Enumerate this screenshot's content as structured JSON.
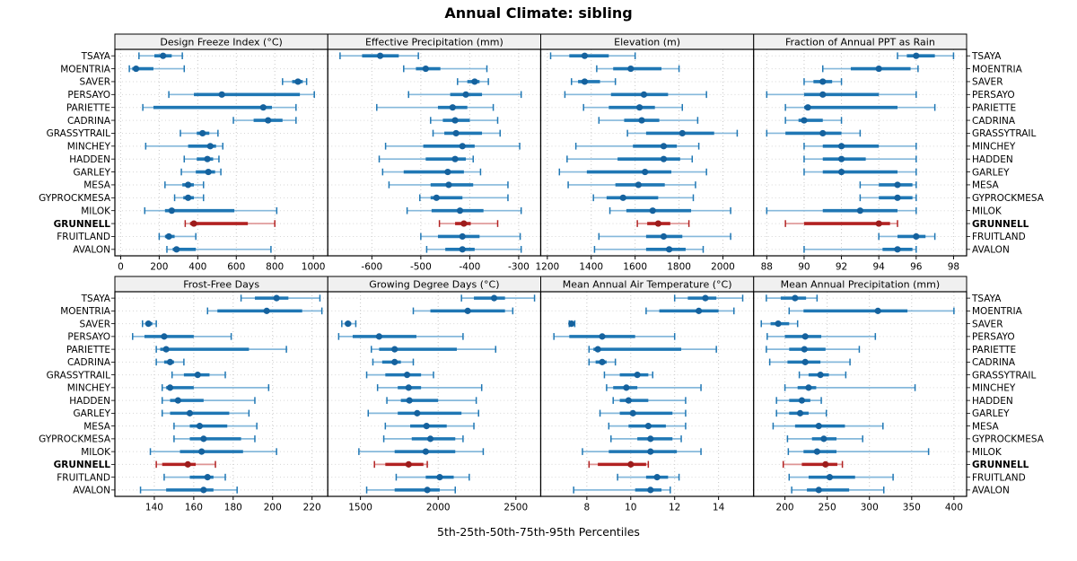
{
  "title": "Annual Climate: sibling",
  "caption": "5th-25th-50th-75th-95th Percentiles",
  "percentile_labels": [
    "5th",
    "25th",
    "50th",
    "75th",
    "95th"
  ],
  "sites": [
    "TSAYA",
    "MOENTRIA",
    "SAVER",
    "PERSAYO",
    "PARIETTE",
    "CADRINA",
    "GRASSYTRAIL",
    "MINCHEY",
    "HADDEN",
    "GARLEY",
    "MESA",
    "GYPROCKMESA",
    "MILOK",
    "GRUNNELL",
    "FRUITLAND",
    "AVALON"
  ],
  "highlight_site": "GRUNNELL",
  "colors": {
    "series": "#1f77b4",
    "series_light": "#85b8db",
    "series_dot": "#15629e",
    "highlight": "#b22222",
    "highlight_light": "#de9494",
    "highlight_dot": "#9c1c1c",
    "strip_bg": "#f0f0f0",
    "grid": "#c8c8c8",
    "row_grid": "#d6d6d6",
    "border": "#000000"
  },
  "chart_data": [
    {
      "type": "dotplot-percentiles",
      "title": "Design Freeze Index (°C)",
      "ticks": [
        0,
        200,
        400,
        600,
        800,
        1000
      ],
      "tick_labels": [
        "0",
        "200",
        "400",
        "600",
        "800",
        "1000"
      ],
      "domain": [
        -30,
        1075
      ],
      "values": [
        [
          95,
          175,
          220,
          265,
          320
        ],
        [
          45,
          60,
          80,
          170,
          330
        ],
        [
          840,
          890,
          920,
          945,
          965
        ],
        [
          250,
          380,
          525,
          930,
          1005
        ],
        [
          115,
          170,
          740,
          785,
          910
        ],
        [
          585,
          690,
          765,
          840,
          910
        ],
        [
          310,
          395,
          425,
          460,
          505
        ],
        [
          130,
          350,
          465,
          495,
          530
        ],
        [
          330,
          395,
          450,
          480,
          510
        ],
        [
          315,
          390,
          455,
          490,
          520
        ],
        [
          230,
          320,
          350,
          380,
          430
        ],
        [
          280,
          325,
          350,
          380,
          430
        ],
        [
          125,
          230,
          265,
          590,
          810
        ],
        [
          335,
          360,
          380,
          660,
          800
        ],
        [
          200,
          230,
          250,
          280,
          390
        ],
        [
          240,
          270,
          290,
          390,
          780
        ]
      ]
    },
    {
      "type": "dotplot-percentiles",
      "title": "Effective Precipitation (mm)",
      "ticks": [
        -600,
        -500,
        -400,
        -300
      ],
      "tick_labels": [
        "-600",
        "-500",
        "-400",
        "-300"
      ],
      "domain": [
        -690,
        -255
      ],
      "values": [
        [
          -665,
          -620,
          -583,
          -545,
          -505
        ],
        [
          -535,
          -510,
          -490,
          -460,
          -365
        ],
        [
          -425,
          -405,
          -390,
          -380,
          -362
        ],
        [
          -525,
          -440,
          -408,
          -375,
          -295
        ],
        [
          -590,
          -465,
          -435,
          -405,
          -352
        ],
        [
          -480,
          -455,
          -430,
          -400,
          -343
        ],
        [
          -475,
          -452,
          -428,
          -375,
          -338
        ],
        [
          -572,
          -495,
          -415,
          -390,
          -298
        ],
        [
          -585,
          -490,
          -430,
          -408,
          -393
        ],
        [
          -578,
          -535,
          -445,
          -412,
          -378
        ],
        [
          -565,
          -480,
          -443,
          -393,
          -322
        ],
        [
          -502,
          -480,
          -468,
          -415,
          -322
        ],
        [
          -528,
          -478,
          -420,
          -372,
          -295
        ],
        [
          -462,
          -430,
          -412,
          -398,
          -343
        ],
        [
          -500,
          -465,
          -415,
          -380,
          -297
        ],
        [
          -488,
          -450,
          -415,
          -390,
          -295
        ]
      ]
    },
    {
      "type": "dotplot-percentiles",
      "title": "Elevation (m)",
      "ticks": [
        1200,
        1400,
        1600,
        1800,
        2000
      ],
      "tick_labels": [
        "1200",
        "1400",
        "1600",
        "1800",
        "2000"
      ],
      "domain": [
        1170,
        2140
      ],
      "values": [
        [
          1215,
          1300,
          1370,
          1480,
          1600
        ],
        [
          1425,
          1500,
          1580,
          1720,
          1800
        ],
        [
          1310,
          1340,
          1370,
          1440,
          1510
        ],
        [
          1280,
          1490,
          1640,
          1750,
          1925
        ],
        [
          1365,
          1480,
          1620,
          1690,
          1815
        ],
        [
          1435,
          1550,
          1630,
          1710,
          1885
        ],
        [
          1565,
          1650,
          1815,
          1960,
          2065
        ],
        [
          1330,
          1590,
          1730,
          1790,
          1890
        ],
        [
          1290,
          1520,
          1730,
          1805,
          1860
        ],
        [
          1255,
          1380,
          1645,
          1765,
          1925
        ],
        [
          1295,
          1510,
          1615,
          1735,
          1875
        ],
        [
          1410,
          1470,
          1545,
          1705,
          1865
        ],
        [
          1485,
          1560,
          1680,
          1855,
          2035
        ],
        [
          1610,
          1655,
          1705,
          1760,
          1845
        ],
        [
          1435,
          1650,
          1730,
          1815,
          2035
        ],
        [
          1415,
          1650,
          1755,
          1830,
          1910
        ]
      ]
    },
    {
      "type": "dotplot-percentiles",
      "title": "Fraction of Annual PPT as Rain",
      "ticks": [
        88,
        90,
        92,
        94,
        96,
        98
      ],
      "tick_labels": [
        "88",
        "90",
        "92",
        "94",
        "96",
        "98"
      ],
      "domain": [
        87.3,
        98.7
      ],
      "values": [
        [
          95,
          95.5,
          96,
          97,
          98
        ],
        [
          91,
          92.5,
          94,
          95.7,
          96.1
        ],
        [
          90,
          90.5,
          91,
          91.5,
          92
        ],
        [
          88,
          90,
          91,
          94,
          96
        ],
        [
          89,
          90,
          90.2,
          95,
          97
        ],
        [
          89,
          89.7,
          90,
          91,
          92
        ],
        [
          88,
          89,
          91,
          92,
          93
        ],
        [
          90,
          91,
          92,
          94,
          96
        ],
        [
          90,
          91,
          92,
          93.3,
          96
        ],
        [
          90,
          91,
          92,
          95,
          96
        ],
        [
          93,
          94,
          95,
          95.8,
          96
        ],
        [
          93,
          94,
          95,
          95.8,
          96
        ],
        [
          88,
          91,
          93,
          95,
          96
        ],
        [
          89,
          90,
          94,
          94.6,
          95
        ],
        [
          94,
          95,
          96,
          96.5,
          97
        ],
        [
          90,
          94.2,
          95,
          95.8,
          96
        ]
      ]
    },
    {
      "type": "dotplot-percentiles",
      "title": "Frost-Free Days",
      "ticks": [
        140,
        160,
        180,
        200,
        220
      ],
      "tick_labels": [
        "140",
        "160",
        "180",
        "200",
        "220"
      ],
      "domain": [
        120,
        228
      ],
      "values": [
        [
          184,
          191,
          202,
          208,
          224
        ],
        [
          167,
          172,
          197,
          215,
          225
        ],
        [
          134,
          136,
          137,
          139,
          141
        ],
        [
          129,
          135,
          145,
          160,
          179
        ],
        [
          141,
          143,
          146,
          188,
          207
        ],
        [
          141,
          145,
          148,
          150,
          155
        ],
        [
          149,
          155,
          162,
          168,
          176
        ],
        [
          144,
          146,
          148,
          160,
          198
        ],
        [
          144,
          148,
          152,
          165,
          191
        ],
        [
          144,
          148,
          158,
          178,
          188
        ],
        [
          150,
          158,
          163,
          177,
          192
        ],
        [
          150,
          158,
          165,
          184,
          191
        ],
        [
          138,
          153,
          164,
          185,
          202
        ],
        [
          141,
          144,
          157,
          161,
          171
        ],
        [
          145,
          158,
          167,
          170,
          176
        ],
        [
          133,
          146,
          165,
          170,
          182
        ]
      ]
    },
    {
      "type": "dotplot-percentiles",
      "title": "Growing Degree Days (°C)",
      "ticks": [
        1500,
        2000,
        2500
      ],
      "tick_labels": [
        "1500",
        "2000",
        "2500"
      ],
      "domain": [
        1290,
        2660
      ],
      "values": [
        [
          2150,
          2230,
          2360,
          2430,
          2620
        ],
        [
          1840,
          1950,
          2190,
          2430,
          2480
        ],
        [
          1380,
          1400,
          1420,
          1440,
          1470
        ],
        [
          1360,
          1450,
          1620,
          1860,
          2160
        ],
        [
          1570,
          1620,
          1720,
          2120,
          2370
        ],
        [
          1580,
          1640,
          1720,
          1760,
          1840
        ],
        [
          1540,
          1660,
          1800,
          1890,
          1970
        ],
        [
          1610,
          1740,
          1810,
          1890,
          2280
        ],
        [
          1670,
          1760,
          1815,
          2000,
          2245
        ],
        [
          1550,
          1740,
          1865,
          2150,
          2260
        ],
        [
          1660,
          1820,
          1925,
          2055,
          2230
        ],
        [
          1650,
          1830,
          1950,
          2110,
          2160
        ],
        [
          1490,
          1720,
          1920,
          2110,
          2290
        ],
        [
          1590,
          1660,
          1810,
          1905,
          1930
        ],
        [
          1730,
          1920,
          2010,
          2100,
          2200
        ],
        [
          1540,
          1720,
          1930,
          2010,
          2110
        ]
      ]
    },
    {
      "type": "dotplot-percentiles",
      "title": "Mean Annual Air Temperature (°C)",
      "ticks": [
        8,
        10,
        12,
        14
      ],
      "tick_labels": [
        "8",
        "10",
        "12",
        "14"
      ],
      "domain": [
        5.9,
        15.6
      ],
      "values": [
        [
          12.0,
          12.6,
          13.4,
          13.9,
          15.1
        ],
        [
          10.7,
          11.3,
          13.1,
          14.0,
          14.7
        ],
        [
          7.2,
          7.25,
          7.3,
          7.35,
          7.45
        ],
        [
          6.5,
          7.2,
          8.7,
          10.2,
          12.0
        ],
        [
          8.1,
          8.3,
          8.5,
          12.3,
          13.9
        ],
        [
          8.1,
          8.4,
          8.7,
          8.9,
          9.3
        ],
        [
          8.8,
          9.5,
          10.3,
          10.8,
          11.0
        ],
        [
          8.9,
          9.2,
          9.8,
          10.3,
          13.2
        ],
        [
          9.2,
          9.5,
          9.9,
          10.8,
          12.5
        ],
        [
          8.6,
          9.5,
          10.1,
          11.9,
          12.5
        ],
        [
          9.0,
          9.9,
          10.8,
          11.6,
          12.5
        ],
        [
          9.1,
          10.3,
          10.9,
          11.9,
          12.3
        ],
        [
          7.8,
          9.0,
          10.9,
          12.1,
          13.2
        ],
        [
          8.1,
          8.5,
          10.0,
          10.7,
          10.8
        ],
        [
          9.4,
          10.7,
          11.2,
          11.7,
          12.2
        ],
        [
          7.4,
          10.2,
          10.9,
          11.4,
          11.8
        ]
      ]
    },
    {
      "type": "dotplot-percentiles",
      "title": "Mean Annual Precipitation (mm)",
      "ticks": [
        200,
        250,
        300,
        350,
        400
      ],
      "tick_labels": [
        "200",
        "250",
        "300",
        "350",
        "400"
      ],
      "domain": [
        163,
        415
      ],
      "values": [
        [
          178,
          195,
          212,
          225,
          238
        ],
        [
          205,
          222,
          310,
          345,
          400
        ],
        [
          172,
          183,
          192,
          205,
          215
        ],
        [
          179,
          200,
          224,
          243,
          307
        ],
        [
          178,
          205,
          223,
          248,
          288
        ],
        [
          182,
          203,
          224,
          242,
          277
        ],
        [
          217,
          228,
          242,
          252,
          272
        ],
        [
          200,
          215,
          228,
          237,
          354
        ],
        [
          190,
          205,
          220,
          230,
          243
        ],
        [
          190,
          205,
          218,
          228,
          249
        ],
        [
          186,
          212,
          240,
          271,
          316
        ],
        [
          203,
          232,
          246,
          261,
          292
        ],
        [
          204,
          222,
          238,
          261,
          370
        ],
        [
          198,
          220,
          248,
          262,
          268
        ],
        [
          205,
          228,
          253,
          283,
          328
        ],
        [
          208,
          226,
          240,
          276,
          317
        ]
      ]
    }
  ]
}
